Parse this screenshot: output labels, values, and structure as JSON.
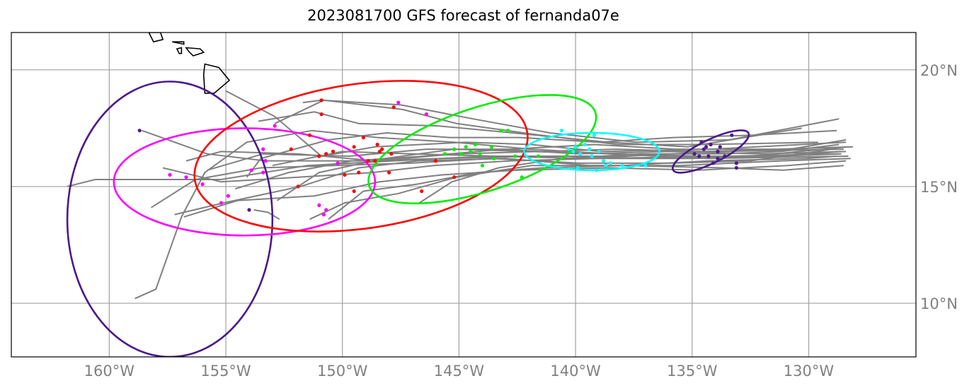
{
  "title": "2023081700 GFS forecast of fernanda07e",
  "map": {
    "lon_range": [
      -164.2,
      -125.4
    ],
    "lat_range": [
      7.7,
      21.6
    ],
    "grid_lons": [
      -160,
      -155,
      -150,
      -145,
      -140,
      -135,
      -130
    ],
    "grid_lats": [
      10,
      15,
      20
    ],
    "lon_labels": [
      "160°W",
      "155°W",
      "150°W",
      "145°W",
      "140°W",
      "135°W",
      "130°W"
    ],
    "lat_labels": [
      "10°N",
      "15°N",
      "20°N"
    ],
    "colors": {
      "grid": "#a0a0a0",
      "track": "#808080",
      "land": "#000000",
      "tick_label": "#808080"
    }
  },
  "coastlines": [
    [
      [
        -159.8,
        22.2
      ],
      [
        -159.3,
        22.3
      ],
      [
        -159.3,
        21.9
      ],
      [
        -159.8,
        21.9
      ]
    ],
    [
      [
        -158.3,
        21.6
      ],
      [
        -157.8,
        21.6
      ],
      [
        -157.7,
        21.3
      ],
      [
        -158.1,
        21.2
      ]
    ],
    [
      [
        -157.3,
        21.2
      ],
      [
        -156.8,
        21.2
      ],
      [
        -156.8,
        21.1
      ]
    ],
    [
      [
        -157.1,
        20.9
      ],
      [
        -156.9,
        20.95
      ],
      [
        -156.9,
        20.7
      ],
      [
        -157.0,
        20.7
      ]
    ],
    [
      [
        -156.7,
        20.95
      ],
      [
        -156.1,
        20.9
      ],
      [
        -155.95,
        20.75
      ],
      [
        -156.4,
        20.6
      ],
      [
        -156.6,
        20.8
      ]
    ],
    [
      [
        -155.9,
        20.25
      ],
      [
        -155.3,
        20.1
      ],
      [
        -154.85,
        19.55
      ],
      [
        -155.5,
        19.0
      ],
      [
        -155.9,
        19.0
      ],
      [
        -155.95,
        19.8
      ]
    ]
  ],
  "tracks": [
    [
      [
        -161.8,
        15.0
      ],
      [
        -160.6,
        15.3
      ],
      [
        -155.2,
        15.3
      ],
      [
        -151.5,
        15.9
      ],
      [
        -147.8,
        16.1
      ],
      [
        -143.8,
        16.3
      ],
      [
        -139.2,
        16.2
      ],
      [
        -133.5,
        16.3
      ],
      [
        -128.7,
        16.4
      ]
    ],
    [
      [
        -158.6,
        17.4
      ],
      [
        -155.8,
        16.4
      ],
      [
        -153.3,
        16.1
      ],
      [
        -149.2,
        16.1
      ],
      [
        -145.8,
        16.2
      ],
      [
        -141.7,
        16.3
      ],
      [
        -137.8,
        16.3
      ],
      [
        -133.9,
        16.5
      ],
      [
        -128.5,
        16.6
      ]
    ],
    [
      [
        -155.0,
        19.1
      ],
      [
        -152.9,
        18.0
      ],
      [
        -150.9,
        16.3
      ],
      [
        -148.6,
        16.7
      ],
      [
        -144.7,
        16.9
      ],
      [
        -141.9,
        16.8
      ],
      [
        -138.9,
        16.5
      ],
      [
        -134.2,
        16.6
      ],
      [
        -128.4,
        16.9
      ]
    ],
    [
      [
        -152.9,
        17.7
      ],
      [
        -150.8,
        18.7
      ],
      [
        -147.4,
        18.3
      ],
      [
        -145.1,
        17.7
      ],
      [
        -141.5,
        17.2
      ],
      [
        -138.2,
        16.8
      ],
      [
        -134.4,
        16.8
      ],
      [
        -129.6,
        16.9
      ]
    ],
    [
      [
        -151.7,
        18.6
      ],
      [
        -150.9,
        18.7
      ],
      [
        -147.5,
        18.5
      ],
      [
        -144.4,
        17.9
      ],
      [
        -141.1,
        17.3
      ],
      [
        -137.4,
        16.9
      ],
      [
        -133.4,
        17.0
      ],
      [
        -128.7,
        17.9
      ]
    ],
    [
      [
        -153.6,
        17.8
      ],
      [
        -151.2,
        18.2
      ],
      [
        -149.3,
        17.7
      ],
      [
        -145.9,
        17.6
      ],
      [
        -142.7,
        17.3
      ],
      [
        -138.6,
        16.9
      ],
      [
        -135.2,
        16.7
      ],
      [
        -130.3,
        17.5
      ]
    ],
    [
      [
        -158.9,
        10.2
      ],
      [
        -158.0,
        10.6
      ],
      [
        -156.9,
        13.7
      ],
      [
        -155.9,
        15.6
      ],
      [
        -154.1,
        16.9
      ],
      [
        -151.3,
        17.4
      ],
      [
        -148.5,
        17.1
      ],
      [
        -145.2,
        16.9
      ],
      [
        -141.9,
        16.6
      ],
      [
        -138.5,
        16.4
      ],
      [
        -134.4,
        16.2
      ],
      [
        -128.3,
        16.3
      ]
    ],
    [
      [
        -158.2,
        14.1
      ],
      [
        -156.3,
        15.3
      ],
      [
        -153.5,
        15.8
      ],
      [
        -150.4,
        15.9
      ],
      [
        -147.1,
        16.0
      ],
      [
        -143.6,
        16.2
      ],
      [
        -139.8,
        16.0
      ],
      [
        -135.9,
        16.0
      ],
      [
        -132.5,
        16.1
      ],
      [
        -129.0,
        16.6
      ]
    ],
    [
      [
        -157.2,
        13.8
      ],
      [
        -155.1,
        14.3
      ],
      [
        -151.8,
        15.0
      ],
      [
        -149.3,
        15.8
      ],
      [
        -146.8,
        16.1
      ],
      [
        -143.0,
        16.2
      ],
      [
        -139.4,
        15.9
      ],
      [
        -135.5,
        15.9
      ],
      [
        -131.2,
        16.1
      ],
      [
        -128.2,
        16.2
      ]
    ],
    [
      [
        -156.8,
        13.7
      ],
      [
        -154.5,
        14.4
      ],
      [
        -151.2,
        14.6
      ],
      [
        -148.4,
        15.2
      ],
      [
        -145.7,
        15.5
      ],
      [
        -142.5,
        15.7
      ],
      [
        -138.6,
        15.8
      ],
      [
        -134.7,
        15.7
      ],
      [
        -130.9,
        15.9
      ],
      [
        -128.4,
        16.1
      ]
    ],
    [
      [
        -155.8,
        15.7
      ],
      [
        -153.4,
        16.4
      ],
      [
        -149.7,
        16.3
      ],
      [
        -146.4,
        16.6
      ],
      [
        -142.8,
        16.6
      ],
      [
        -139.2,
        16.8
      ],
      [
        -135.7,
        16.6
      ],
      [
        -131.4,
        16.6
      ],
      [
        -128.1,
        16.7
      ]
    ],
    [
      [
        -153.8,
        14.0
      ],
      [
        -153.2,
        13.9
      ],
      [
        -152.7,
        13.6
      ]
    ],
    [
      [
        -150.6,
        13.6
      ],
      [
        -149.1,
        14.8
      ],
      [
        -146.8,
        15.1
      ],
      [
        -144.2,
        15.6
      ],
      [
        -141.4,
        15.8
      ],
      [
        -137.9,
        15.9
      ],
      [
        -133.7,
        15.8
      ],
      [
        -131.1,
        15.7
      ],
      [
        -128.5,
        15.9
      ]
    ],
    [
      [
        -151.4,
        13.6
      ],
      [
        -149.9,
        14.3
      ],
      [
        -147.6,
        14.7
      ],
      [
        -145.1,
        15.4
      ],
      [
        -141.9,
        15.9
      ],
      [
        -138.0,
        15.9
      ],
      [
        -134.3,
        16.1
      ],
      [
        -130.1,
        16.2
      ],
      [
        -128.8,
        16.3
      ]
    ],
    [
      [
        -152.8,
        14.4
      ],
      [
        -151.0,
        15.6
      ],
      [
        -148.2,
        16.2
      ],
      [
        -145.2,
        16.6
      ],
      [
        -141.9,
        16.5
      ],
      [
        -138.4,
        16.4
      ],
      [
        -134.6,
        16.3
      ],
      [
        -131.1,
        16.3
      ],
      [
        -128.6,
        16.5
      ]
    ],
    [
      [
        -153.0,
        15.9
      ],
      [
        -150.0,
        16.5
      ],
      [
        -147.0,
        16.4
      ],
      [
        -143.4,
        16.3
      ],
      [
        -140.3,
        16.3
      ],
      [
        -136.7,
        16.2
      ],
      [
        -132.5,
        16.3
      ],
      [
        -128.3,
        16.7
      ]
    ],
    [
      [
        -154.6,
        14.9
      ],
      [
        -152.3,
        15.6
      ],
      [
        -149.6,
        16.1
      ],
      [
        -146.5,
        16.3
      ],
      [
        -143.1,
        16.6
      ],
      [
        -139.9,
        16.4
      ],
      [
        -136.0,
        16.5
      ],
      [
        -132.0,
        16.4
      ],
      [
        -128.4,
        16.5
      ]
    ],
    [
      [
        -157.7,
        15.8
      ],
      [
        -155.2,
        15.2
      ],
      [
        -151.9,
        15.4
      ],
      [
        -148.7,
        15.6
      ],
      [
        -146.1,
        15.9
      ],
      [
        -142.8,
        16.1
      ],
      [
        -139.1,
        16.2
      ],
      [
        -135.0,
        16.2
      ],
      [
        -131.4,
        16.3
      ],
      [
        -128.6,
        16.4
      ]
    ],
    [
      [
        -154.1,
        15.4
      ],
      [
        -153.5,
        16.2
      ],
      [
        -150.6,
        17.0
      ],
      [
        -148.1,
        17.3
      ],
      [
        -145.4,
        17.1
      ],
      [
        -142.4,
        17.1
      ],
      [
        -139.0,
        16.9
      ],
      [
        -135.8,
        17.1
      ],
      [
        -132.4,
        17.2
      ],
      [
        -128.8,
        17.4
      ]
    ],
    [
      [
        -146.7,
        14.3
      ],
      [
        -145.3,
        15.2
      ],
      [
        -143.3,
        15.8
      ],
      [
        -140.6,
        16.2
      ],
      [
        -137.2,
        16.4
      ],
      [
        -133.8,
        16.4
      ],
      [
        -131.2,
        16.5
      ],
      [
        -128.7,
        16.8
      ]
    ],
    [
      [
        -156.7,
        16.1
      ],
      [
        -155.2,
        16.5
      ],
      [
        -151.9,
        16.4
      ],
      [
        -148.6,
        16.1
      ],
      [
        -145.1,
        16.4
      ],
      [
        -141.6,
        16.5
      ],
      [
        -138.3,
        16.6
      ],
      [
        -134.5,
        16.5
      ],
      [
        -130.8,
        16.6
      ],
      [
        -128.4,
        17.0
      ]
    ]
  ],
  "forecast_points": [
    {
      "color": "#4b1a8c",
      "points": [
        [
          -158.7,
          17.4
        ],
        [
          -154.0,
          14.0
        ],
        [
          -134.9,
          16.4
        ],
        [
          -134.5,
          16.6
        ],
        [
          -134.2,
          16.8
        ],
        [
          -133.9,
          16.5
        ],
        [
          -133.6,
          16.3
        ],
        [
          -133.3,
          17.2
        ],
        [
          -134.1,
          16.0
        ],
        [
          -134.6,
          16.9
        ],
        [
          -133.8,
          16.7
        ],
        [
          -134.3,
          16.3
        ],
        [
          -133.1,
          15.8
        ],
        [
          -133.1,
          16.0
        ],
        [
          -134.7,
          16.3
        ],
        [
          -133.9,
          16.2
        ],
        [
          -134.4,
          16.7
        ]
      ]
    },
    {
      "color": "#ff00ff",
      "points": [
        [
          -157.4,
          15.5
        ],
        [
          -156.7,
          15.4
        ],
        [
          -156.0,
          15.1
        ],
        [
          -155.2,
          14.3
        ],
        [
          -154.9,
          14.6
        ],
        [
          -153.9,
          15.7
        ],
        [
          -153.4,
          16.6
        ],
        [
          -153.3,
          16.1
        ],
        [
          -153.4,
          15.6
        ],
        [
          -151.0,
          14.2
        ],
        [
          -150.7,
          14.0
        ],
        [
          -150.8,
          13.8
        ],
        [
          -150.2,
          16.0
        ],
        [
          -152.9,
          17.6
        ],
        [
          -147.6,
          18.6
        ],
        [
          -146.4,
          18.1
        ]
      ]
    },
    {
      "color": "#ff0000",
      "points": [
        [
          -152.2,
          16.6
        ],
        [
          -151.4,
          17.2
        ],
        [
          -151.0,
          16.3
        ],
        [
          -150.7,
          16.4
        ],
        [
          -150.4,
          16.5
        ],
        [
          -149.9,
          15.5
        ],
        [
          -149.5,
          16.7
        ],
        [
          -149.3,
          15.6
        ],
        [
          -149.1,
          17.1
        ],
        [
          -148.9,
          16.1
        ],
        [
          -148.6,
          16.1
        ],
        [
          -148.5,
          16.8
        ],
        [
          -148.4,
          16.5
        ],
        [
          -148.3,
          16.6
        ],
        [
          -148.0,
          15.6
        ],
        [
          -147.9,
          16.4
        ],
        [
          -150.9,
          18.7
        ],
        [
          -150.9,
          18.1
        ],
        [
          -147.8,
          18.4
        ],
        [
          -146.6,
          14.8
        ],
        [
          -146.0,
          16.1
        ],
        [
          -145.2,
          15.4
        ],
        [
          -151.9,
          15.0
        ],
        [
          -149.5,
          14.8
        ]
      ]
    },
    {
      "color": "#00ee00",
      "points": [
        [
          -145.2,
          16.6
        ],
        [
          -144.9,
          16.4
        ],
        [
          -144.7,
          16.7
        ],
        [
          -144.5,
          16.5
        ],
        [
          -144.3,
          16.8
        ],
        [
          -143.6,
          16.7
        ],
        [
          -143.5,
          16.2
        ],
        [
          -143.2,
          17.4
        ],
        [
          -142.9,
          17.4
        ],
        [
          -142.6,
          16.3
        ],
        [
          -144.0,
          15.9
        ],
        [
          -142.3,
          15.4
        ],
        [
          -141.6,
          16.3
        ],
        [
          -145.6,
          16.4
        ],
        [
          -144.1,
          16.4
        ]
      ]
    },
    {
      "color": "#00ffff",
      "points": [
        [
          -140.6,
          17.4
        ],
        [
          -140.3,
          16.6
        ],
        [
          -140.0,
          16.7
        ],
        [
          -139.8,
          16.4
        ],
        [
          -139.6,
          16.8
        ],
        [
          -139.4,
          16.6
        ],
        [
          -139.2,
          17.2
        ],
        [
          -139.0,
          16.5
        ],
        [
          -138.8,
          16.1
        ],
        [
          -138.7,
          15.9
        ],
        [
          -138.5,
          16.0
        ],
        [
          -138.0,
          15.9
        ],
        [
          -137.0,
          15.9
        ],
        [
          -139.9,
          15.8
        ],
        [
          -139.3,
          16.3
        ],
        [
          -140.1,
          16.5
        ],
        [
          -139.1,
          15.7
        ]
      ]
    }
  ],
  "ellipses": [
    {
      "color": "#4b1a8c",
      "center": [
        -157.4,
        13.6
      ],
      "semi_lon": 4.4,
      "semi_lat": 5.9
    },
    {
      "color": "#ff00ff",
      "center": [
        -154.2,
        15.2
      ],
      "semi_lon": 5.6,
      "semi_lat": 2.3
    },
    {
      "color": "#ff0000",
      "center": [
        -149.2,
        16.3
      ],
      "semi_lon": 7.2,
      "semi_lat": 3.1,
      "angle": -8
    },
    {
      "color": "#00ee00",
      "center": [
        -144.0,
        16.6
      ],
      "semi_lon": 5.1,
      "semi_lat": 1.8,
      "angle": -18
    },
    {
      "color": "#00ffff",
      "center": [
        -139.3,
        16.5
      ],
      "semi_lon": 2.9,
      "semi_lat": 0.8
    },
    {
      "color": "#4b1a8c",
      "center": [
        -134.2,
        16.5
      ],
      "semi_lon": 1.8,
      "semi_lat": 0.5,
      "angle": -26
    }
  ]
}
